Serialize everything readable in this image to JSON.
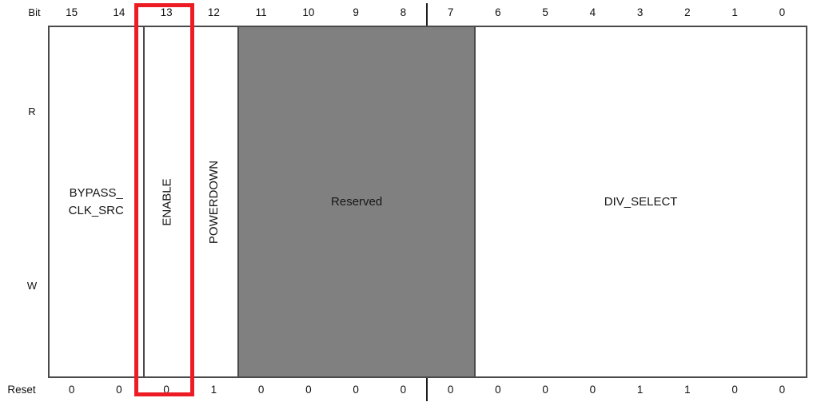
{
  "register": {
    "bit_row_label": "Bit",
    "read_label": "R",
    "write_label": "W",
    "reset_row_label": "Reset",
    "bit_numbers": [
      "15",
      "14",
      "13",
      "12",
      "11",
      "10",
      "9",
      "8",
      "7",
      "6",
      "5",
      "4",
      "3",
      "2",
      "1",
      "0"
    ],
    "reset_values": [
      "0",
      "0",
      "0",
      "1",
      "0",
      "0",
      "0",
      "0",
      "0",
      "0",
      "0",
      "0",
      "1",
      "1",
      "0",
      "0"
    ],
    "fields": [
      {
        "name": "BYPASS_CLK_SRC",
        "label_lines": [
          "BYPASS_",
          "CLK_SRC"
        ],
        "bit_high": 15,
        "bit_low": 14,
        "orientation": "horizontal",
        "reserved": false,
        "highlighted": false
      },
      {
        "name": "ENABLE",
        "label_lines": [
          "ENABLE"
        ],
        "bit_high": 13,
        "bit_low": 13,
        "orientation": "vertical",
        "reserved": false,
        "highlighted": true
      },
      {
        "name": "POWERDOWN",
        "label_lines": [
          "POWERDOWN"
        ],
        "bit_high": 12,
        "bit_low": 12,
        "orientation": "vertical",
        "reserved": false,
        "highlighted": false
      },
      {
        "name": "Reserved",
        "label_lines": [
          "Reserved"
        ],
        "bit_high": 11,
        "bit_low": 7,
        "orientation": "horizontal",
        "reserved": true,
        "highlighted": false
      },
      {
        "name": "DIV_SELECT",
        "label_lines": [
          "DIV_SELECT"
        ],
        "bit_high": 6,
        "bit_low": 0,
        "orientation": "horizontal",
        "reserved": false,
        "highlighted": false
      }
    ],
    "colors": {
      "reserved_fill": "#808080",
      "highlight_red": "#ed1c24",
      "border": "#4a4a4c",
      "text": "#111111"
    }
  }
}
